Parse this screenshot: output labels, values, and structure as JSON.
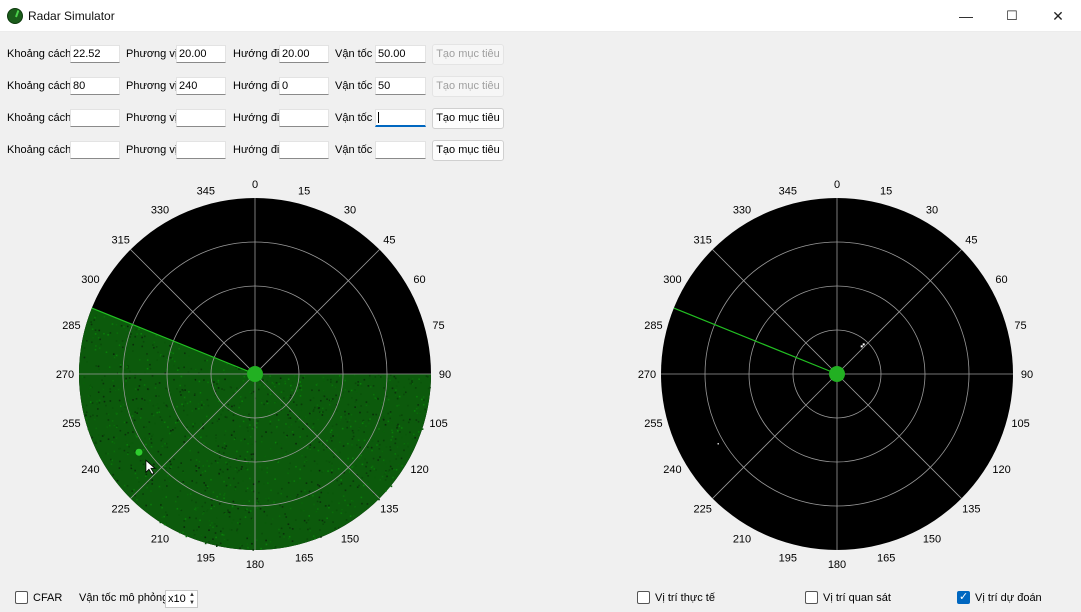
{
  "window": {
    "title": "Radar Simulator",
    "minimize": "—",
    "maximize": "☐",
    "close": "✕"
  },
  "labels": {
    "distance": "Khoảng cách",
    "bearing": "Phương vị",
    "heading": "Hướng đi",
    "speed": "Vận tốc"
  },
  "targets": [
    {
      "distance": "22.52",
      "bearing": "20.00",
      "heading": "20.00",
      "speed": "50.00",
      "button": "Tạo mục tiêu",
      "button_enabled": false
    },
    {
      "distance": "80",
      "bearing": "240",
      "heading": "0",
      "speed": "50",
      "button": "Tạo mục tiêu",
      "button_enabled": false
    },
    {
      "distance": "",
      "bearing": "",
      "heading": "",
      "speed": "",
      "button": "Tạo mục tiêu",
      "button_enabled": true
    },
    {
      "distance": "",
      "bearing": "",
      "heading": "",
      "speed": "",
      "button": "Tạo mục tiêu",
      "button_enabled": true
    }
  ],
  "radar": {
    "angle_labels": [
      "0",
      "15",
      "30",
      "45",
      "60",
      "75",
      "90",
      "105",
      "120",
      "135",
      "150",
      "165",
      "180",
      "195",
      "210",
      "225",
      "240",
      "255",
      "270",
      "285",
      "300",
      "315",
      "330",
      "345"
    ],
    "sweep_bearing_deg": 292,
    "colors": {
      "background": "#000000",
      "center": "#22b022",
      "sweep": "#22c022",
      "noise": "#0c5a0c"
    }
  },
  "controls": {
    "cfar_label": "CFAR",
    "cfar_checked": false,
    "sim_speed_label": "Vận tốc mô phỏng",
    "sim_speed_value": "x10",
    "true_pos_label": "Vị trí thực tế",
    "true_pos_checked": false,
    "observed_pos_label": "Vị trí quan sát",
    "observed_pos_checked": false,
    "predicted_pos_label": "Vị trí dự đoán",
    "predicted_pos_checked": true
  }
}
